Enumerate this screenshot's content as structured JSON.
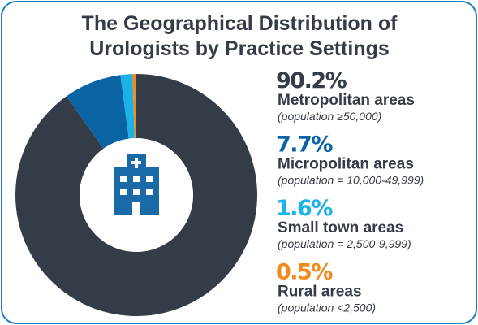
{
  "chart_data": {
    "type": "donut",
    "title": "The Geographical Distribution of Urologists by Practice Settings",
    "series": [
      {
        "name": "Metropolitan areas",
        "description": "(population ≥50,000)",
        "color": "#333c47",
        "values": [
          90.2
        ],
        "value_labels": [
          "90.2%"
        ]
      },
      {
        "name": "Micropolitan areas",
        "description": "(population = 10,000-49,999)",
        "color": "#0a64a4",
        "values": [
          7.7
        ],
        "value_labels": [
          "7.7%"
        ]
      },
      {
        "name": "Small town areas",
        "description": "(population = 2,500-9,999)",
        "color": "#1bb3e6",
        "values": [
          1.6
        ],
        "value_labels": [
          "1.6%"
        ]
      },
      {
        "name": "Rural areas",
        "description": "(population <2,500)",
        "color": "#f28a1e",
        "values": [
          0.5
        ],
        "value_labels": [
          "0.5%"
        ]
      }
    ]
  }
}
